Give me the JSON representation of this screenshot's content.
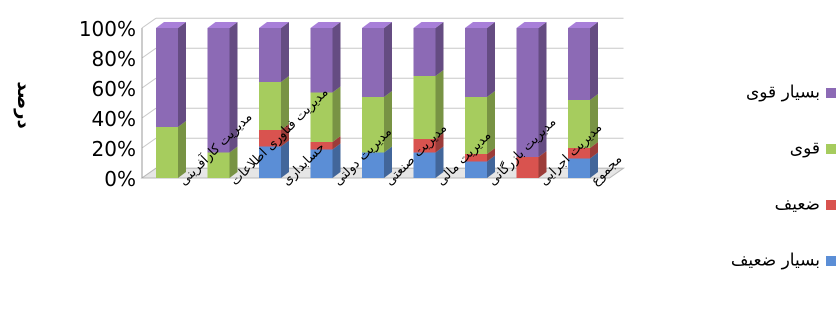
{
  "chart_data": {
    "type": "bar",
    "stacked": true,
    "percent": true,
    "three_d": true,
    "categories": [
      "مدیریت کارآفرینی",
      "مدیریت فناوری اطلاعات",
      "حسابداری",
      "مدیریت دولتی",
      "مدیریت صنعتی",
      "مدیریت مالی",
      "مدیریت بازرگانی",
      "مدیریت اجرایی",
      "مجموع"
    ],
    "series": [
      {
        "name": "بسیار ضعیف",
        "color": "#5b8ed6",
        "values": [
          0,
          0,
          21,
          19,
          17,
          17,
          11,
          0,
          13
        ]
      },
      {
        "name": "ضعیف",
        "color": "#d9534f",
        "values": [
          0,
          0,
          11,
          5,
          0,
          9,
          5,
          14,
          7
        ]
      },
      {
        "name": "قوی",
        "color": "#a6cc5e",
        "values": [
          34,
          17,
          32,
          33,
          37,
          42,
          38,
          0,
          32
        ]
      },
      {
        "name": "بسیار قوی",
        "color": "#8c6ab5",
        "values": [
          66,
          83,
          36,
          43,
          46,
          32,
          46,
          86,
          48
        ]
      }
    ],
    "y_ticks": [
      "0%",
      "20%",
      "40%",
      "60%",
      "80%",
      "100%"
    ],
    "ylim": [
      0,
      100
    ],
    "ylabel": "درصد",
    "xlabel": "",
    "title": "",
    "legend_position": "right",
    "grid": true
  }
}
